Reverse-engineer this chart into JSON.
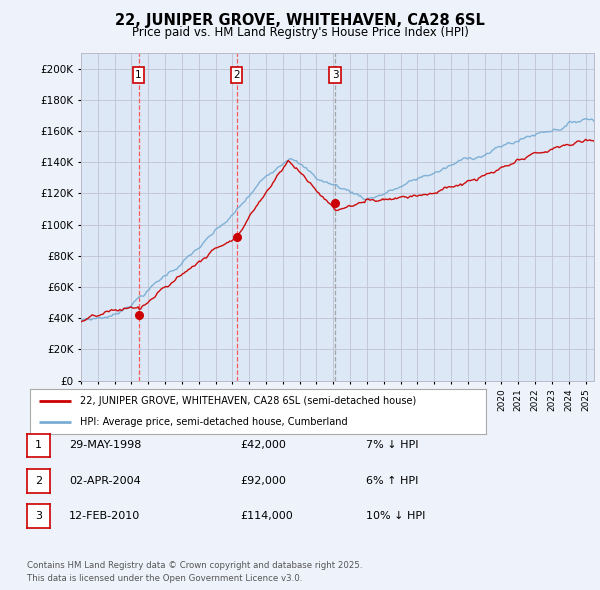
{
  "title_line1": "22, JUNIPER GROVE, WHITEHAVEN, CA28 6SL",
  "title_line2": "Price paid vs. HM Land Registry's House Price Index (HPI)",
  "y_values": [
    0,
    20000,
    40000,
    60000,
    80000,
    100000,
    120000,
    140000,
    160000,
    180000,
    200000
  ],
  "sale_dates": [
    1998.42,
    2004.25,
    2010.12
  ],
  "sale_prices": [
    42000,
    92000,
    114000
  ],
  "sale_labels": [
    "1",
    "2",
    "3"
  ],
  "sale_line_colors": [
    "#ff4444",
    "#ff4444",
    "#999999"
  ],
  "sale_line_styles": [
    "--",
    "--",
    "--"
  ],
  "legend_line1": "22, JUNIPER GROVE, WHITEHAVEN, CA28 6SL (semi-detached house)",
  "legend_line2": "HPI: Average price, semi-detached house, Cumberland",
  "table_data": [
    [
      "1",
      "29-MAY-1998",
      "£42,000",
      "7% ↓ HPI"
    ],
    [
      "2",
      "02-APR-2004",
      "£92,000",
      "6% ↑ HPI"
    ],
    [
      "3",
      "12-FEB-2010",
      "£114,000",
      "10% ↓ HPI"
    ]
  ],
  "footer": "Contains HM Land Registry data © Crown copyright and database right 2025.\nThis data is licensed under the Open Government Licence v3.0.",
  "bg_color": "#eef2fa",
  "plot_bg": "#dce8f5",
  "red_color": "#cc0000",
  "blue_color": "#7aadd4",
  "grid_color": "#bbbbcc",
  "xmin": 1995,
  "xmax": 2025.5,
  "ymin": 0,
  "ymax": 210000
}
